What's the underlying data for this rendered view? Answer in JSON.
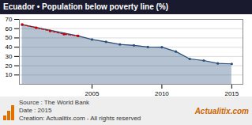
{
  "chart_data": {
    "type": "area",
    "title": "Ecuador • Population below poverty line (%)",
    "x": [
      2000,
      2001,
      2002,
      2003,
      2004,
      2005,
      2006,
      2007,
      2008,
      2009,
      2010,
      2011,
      2012,
      2013,
      2014,
      2015
    ],
    "series": [
      {
        "type": "area",
        "color": "#2b4f7a",
        "marker": "circle",
        "line_style": "solid",
        "values": [
          64.4,
          null,
          null,
          null,
          52.2,
          48.3,
          45.8,
          43.0,
          42.0,
          40.2,
          40.0,
          35.3,
          27.3,
          25.6,
          22.5,
          22.0
        ]
      },
      {
        "type": "line",
        "color": "#cc0000",
        "marker": "square",
        "line_style": "dashed",
        "values": [
          64.4,
          61.0,
          57.5,
          54.0,
          52.2,
          null,
          null,
          null,
          null,
          null,
          null,
          null,
          null,
          null,
          null,
          null
        ]
      }
    ],
    "xlim": [
      1999.8,
      2015.8
    ],
    "xticks": [
      2005,
      2010,
      2015
    ],
    "ylim": [
      0,
      70
    ],
    "yticks": [
      10,
      20,
      30,
      40,
      50,
      60,
      70
    ],
    "grid": true,
    "annotations": [
      "Source : The World Bank",
      "Date : 2015",
      "Creation: Actualitix.com - All rights reserved",
      "Actualitix.com"
    ]
  }
}
